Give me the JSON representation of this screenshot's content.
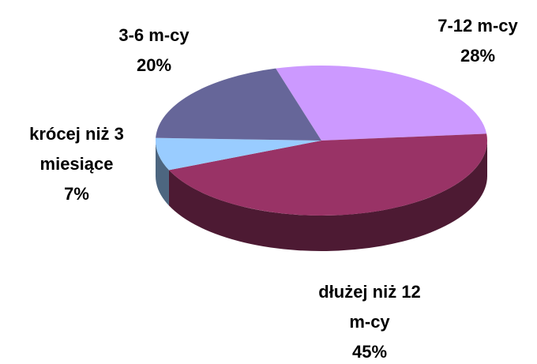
{
  "chart_data": {
    "type": "pie",
    "categories": [
      "7-12 m-cy",
      "dłużej niż 12 m-cy",
      "krócej niż 3 miesiące",
      "3-6 m-cy"
    ],
    "values": [
      28,
      45,
      7,
      20
    ],
    "value_labels": [
      "28%",
      "45%",
      "7%",
      "20%"
    ],
    "colors": [
      "#cc99ff",
      "#993366",
      "#99ccff",
      "#666699"
    ]
  }
}
